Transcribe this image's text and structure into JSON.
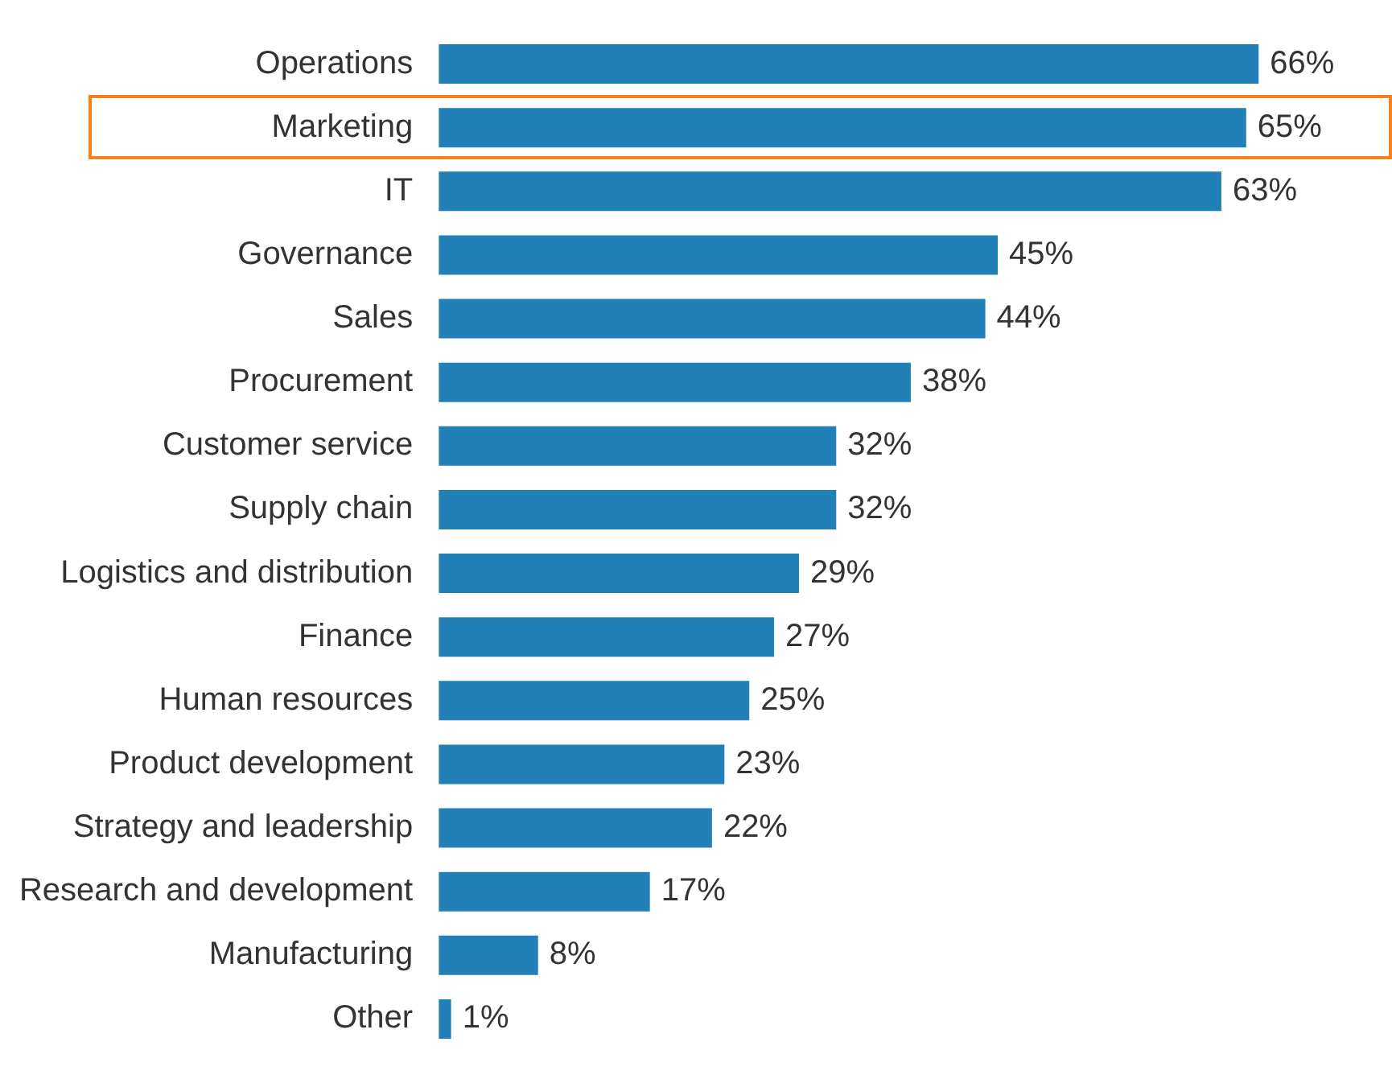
{
  "chart_data": {
    "type": "bar",
    "orientation": "horizontal",
    "tick_labels": "y",
    "legend": false,
    "categories": [
      "Operations",
      "Marketing",
      "IT",
      "Governance",
      "Sales",
      "Procurement",
      "Customer service",
      "Supply chain",
      "Logistics and distribution",
      "Finance",
      "Human resources",
      "Product development",
      "Strategy and leadership",
      "Research and development",
      "Manufacturing",
      "Other"
    ],
    "values": [
      66,
      65,
      63,
      45,
      44,
      38,
      32,
      32,
      29,
      27,
      25,
      23,
      22,
      17,
      8,
      1
    ],
    "value_labels": [
      "66%",
      "65%",
      "63%",
      "45%",
      "44%",
      "38%",
      "32%",
      "32%",
      "29%",
      "27%",
      "25%",
      "23%",
      "22%",
      "17%",
      "8%",
      "1%"
    ],
    "color": "#2080b7"
  }
}
